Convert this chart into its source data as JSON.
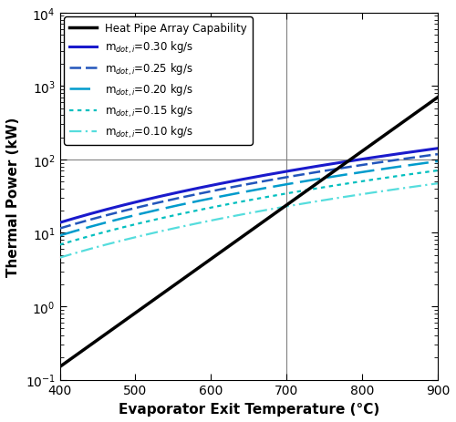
{
  "xlabel": "Evaporator Exit Temperature (°C)",
  "ylabel": "Thermal Power (kW)",
  "xlim": [
    400,
    900
  ],
  "ylim": [
    0.1,
    10000
  ],
  "vline_x": 700,
  "hline_y": 100,
  "heat_pipe_color": "#000000",
  "heat_pipe_lw": 2.5,
  "exchanger_colors": [
    "#1a1acc",
    "#2255bb",
    "#009bcc",
    "#00bfbf",
    "#55dddd"
  ],
  "exchanger_mass_flows": [
    0.3,
    0.25,
    0.2,
    0.15,
    0.1
  ],
  "exchanger_linewidths": [
    2.2,
    1.8,
    1.8,
    1.6,
    1.6
  ],
  "exchanger_dashes": [
    [],
    [
      5,
      2,
      5,
      2
    ],
    [
      9,
      3
    ],
    [
      2,
      2
    ],
    [
      6,
      2,
      1,
      2
    ]
  ],
  "hp_scale": 0.00018,
  "hp_exp_scale": 0.0185,
  "exch_base_kw_per_flow": 46.0,
  "exch_power": 1.35,
  "exch_base_T": 400
}
